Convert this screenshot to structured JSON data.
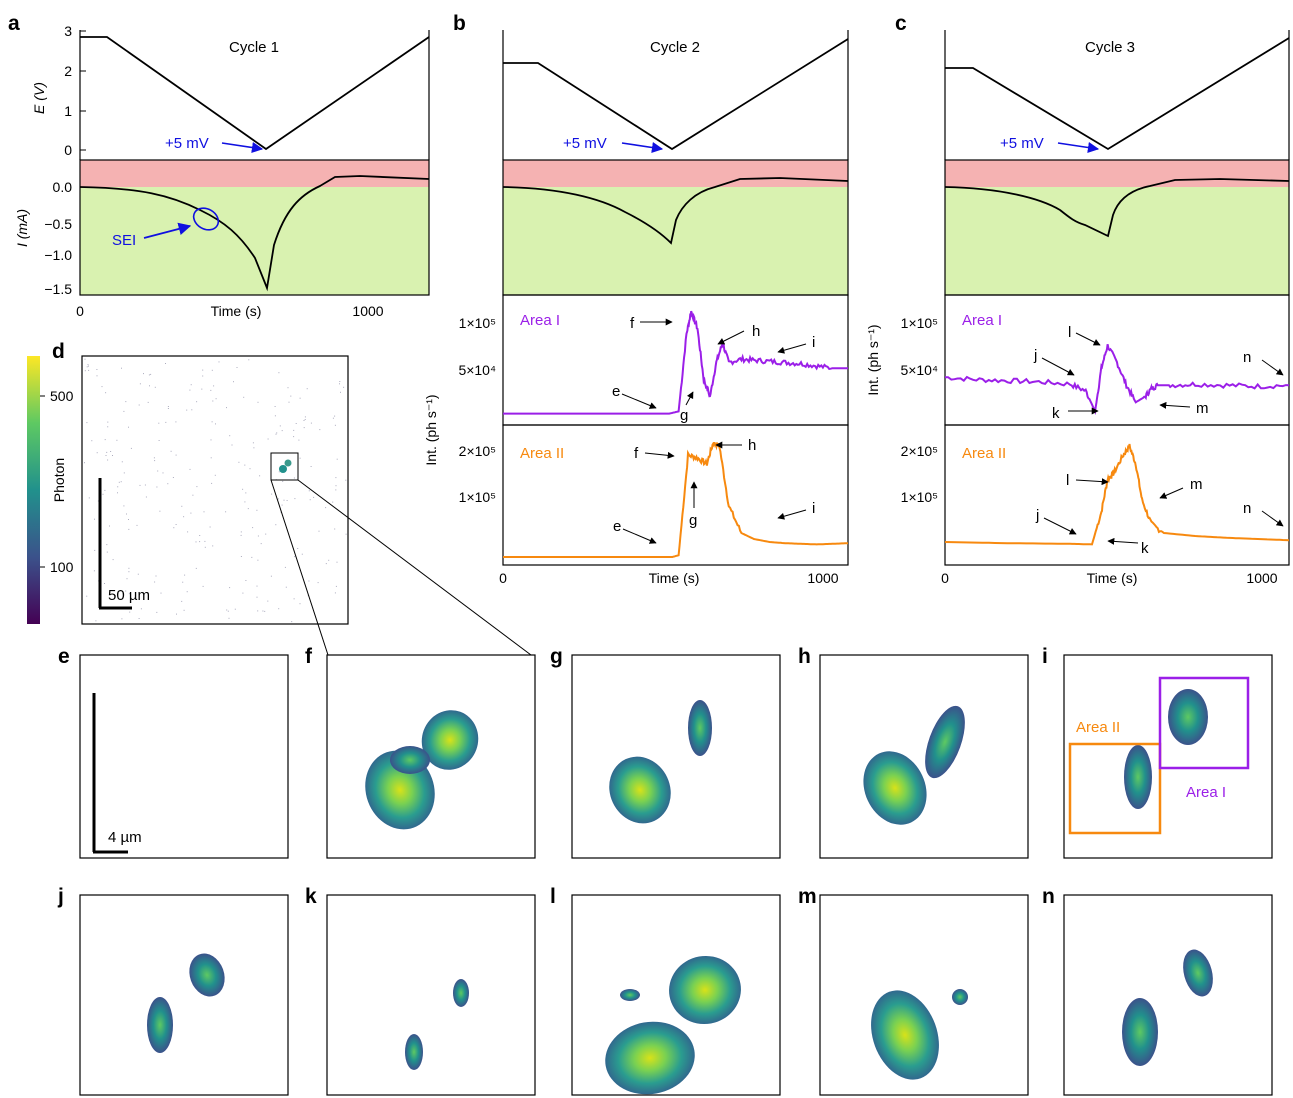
{
  "figure": {
    "panel_letters": [
      "a",
      "b",
      "c",
      "d",
      "e",
      "f",
      "g",
      "h",
      "i",
      "j",
      "k",
      "l",
      "m",
      "n"
    ]
  },
  "colors": {
    "charge_band": "#f5b2b2",
    "discharge_band": "#d9f2b0",
    "area1": "#9b1fe8",
    "area2": "#f7890f",
    "annotation_blue": "#1010e0",
    "trace": "#000000"
  },
  "cycles": [
    {
      "title": "Cycle 1",
      "annotation": "+5 mV"
    },
    {
      "title": "Cycle 2",
      "annotation": "+5 mV"
    },
    {
      "title": "Cycle 3",
      "annotation": "+5 mV"
    }
  ],
  "axes": {
    "E_label": "E (V)",
    "I_label": "I (mA)",
    "time_label": "Time (s)",
    "int_label": "Int. (ph s⁻¹)",
    "sei_label": "SEI",
    "E_ticks": [
      "0",
      "1",
      "2",
      "3"
    ],
    "I_ticks": [
      "0.0",
      "−0.5",
      "−1.0",
      "−1.5"
    ],
    "time_ticks": [
      "0",
      "1000"
    ],
    "area1_ticks": [
      "1×10⁵",
      "5×10⁴"
    ],
    "area2_ticks": [
      "2×10⁵",
      "1×10⁵"
    ]
  },
  "area_labels": {
    "area1": "Area I",
    "area2": "Area II"
  },
  "colorbar": {
    "label": "Photon",
    "ticks": [
      "500",
      "100"
    ]
  },
  "scalebars": {
    "d": "50 µm",
    "e": "4 µm"
  },
  "chart_data": [
    {
      "type": "line",
      "panel": "a (top)",
      "title": "Cycle 1",
      "xlabel": "Time (s)",
      "ylabel": "E (V)",
      "xlim": [
        0,
        1400
      ],
      "ylim": [
        -0.1,
        3.0
      ],
      "series": [
        {
          "x": [
            0,
            200,
            1000,
            1400
          ],
          "y": [
            2.78,
            2.78,
            0.005,
            2.78
          ]
        }
      ],
      "x": [
        0,
        200,
        1000,
        1400
      ],
      "annotations": [
        "+5 mV"
      ]
    },
    {
      "type": "line",
      "panel": "a (bottom)",
      "xlabel": "Time (s)",
      "ylabel": "I (mA)",
      "xlim": [
        0,
        1400
      ],
      "ylim": [
        -1.6,
        0.4
      ],
      "x": [
        0,
        150,
        300,
        450,
        550,
        650,
        750,
        820,
        870,
        900,
        940,
        1000,
        1100,
        1200,
        1300,
        1400
      ],
      "series": [
        {
          "x": [
            0,
            150,
            300,
            450,
            550,
            650,
            750,
            820,
            870,
            900,
            940,
            1000,
            1100,
            1200,
            1300,
            1400
          ],
          "y": [
            0.0,
            -0.01,
            -0.05,
            -0.15,
            -0.3,
            -0.5,
            -0.75,
            -1.05,
            -1.3,
            -1.48,
            -0.9,
            -0.3,
            0.1,
            0.17,
            0.17,
            0.15
          ]
        }
      ],
      "annotations": [
        "SEI"
      ]
    },
    {
      "type": "line",
      "panel": "b (Area I)",
      "title": "Cycle 2",
      "xlabel": "Time (s)",
      "ylabel": "Int. (ph s⁻¹)",
      "xlim": [
        0,
        1100
      ],
      "ylim": [
        0,
        110000
      ],
      "series": [
        {
          "name": "Area I",
          "x": [
            0,
            300,
            500,
            530,
            560,
            585,
            600,
            620,
            640,
            660,
            680,
            700,
            720,
            760,
            800,
            850,
            900,
            950,
            1000,
            1050,
            1100
          ],
          "y": [
            10000,
            10000,
            10000,
            10000,
            12000,
            80000,
            100000,
            85000,
            40000,
            25000,
            55000,
            72000,
            55000,
            58000,
            57000,
            56000,
            55000,
            54000,
            52000,
            50000,
            50000
          ]
        }
      ],
      "annotations": [
        "e",
        "f",
        "g",
        "h",
        "i"
      ]
    },
    {
      "type": "line",
      "panel": "b (Area II)",
      "xlabel": "Time (s)",
      "ylabel": "Int. (ph s⁻¹)",
      "xlim": [
        0,
        1100
      ],
      "ylim": [
        0,
        220000
      ],
      "series": [
        {
          "name": "Area II",
          "x": [
            0,
            300,
            500,
            540,
            560,
            590,
            620,
            650,
            670,
            690,
            720,
            760,
            800,
            850,
            900,
            950,
            1000,
            1050,
            1100
          ],
          "y": [
            5000,
            5000,
            5000,
            5000,
            8000,
            175000,
            170000,
            160000,
            195000,
            190000,
            90000,
            45000,
            35000,
            30000,
            28000,
            27000,
            26000,
            27000,
            28000
          ]
        }
      ],
      "annotations": [
        "e",
        "f",
        "g",
        "h",
        "i"
      ]
    },
    {
      "type": "line",
      "panel": "c (Area I)",
      "title": "Cycle 3",
      "xlabel": "Time (s)",
      "ylabel": "Int. (ph s⁻¹)",
      "xlim": [
        0,
        1100
      ],
      "ylim": [
        0,
        110000
      ],
      "series": [
        {
          "name": "Area I",
          "x": [
            0,
            100,
            200,
            300,
            400,
            450,
            480,
            500,
            520,
            550,
            580,
            610,
            640,
            660,
            680,
            720,
            800,
            900,
            1000,
            1100
          ],
          "y": [
            42000,
            40000,
            39000,
            38000,
            36000,
            30000,
            12000,
            50000,
            70000,
            55000,
            35000,
            20000,
            25000,
            32000,
            35000,
            35000,
            36000,
            35000,
            34000,
            35000
          ]
        }
      ],
      "annotations": [
        "j",
        "k",
        "l",
        "m",
        "n"
      ]
    },
    {
      "type": "line",
      "panel": "c (Area II)",
      "xlabel": "Time (s)",
      "ylabel": "Int. (ph s⁻¹)",
      "xlim": [
        0,
        1100
      ],
      "ylim": [
        0,
        220000
      ],
      "series": [
        {
          "name": "Area II",
          "x": [
            0,
            200,
            400,
            470,
            500,
            520,
            540,
            570,
            590,
            610,
            630,
            660,
            700,
            800,
            900,
            1000,
            1100
          ],
          "y": [
            30000,
            28000,
            27000,
            26000,
            80000,
            135000,
            145000,
            175000,
            190000,
            160000,
            100000,
            60000,
            45000,
            40000,
            37000,
            35000,
            33000
          ]
        }
      ],
      "annotations": [
        "j",
        "k",
        "l",
        "m",
        "n"
      ]
    }
  ],
  "images": [
    {
      "panel": "e"
    },
    {
      "panel": "f"
    },
    {
      "panel": "g"
    },
    {
      "panel": "h"
    },
    {
      "panel": "i"
    },
    {
      "panel": "j"
    },
    {
      "panel": "k"
    },
    {
      "panel": "l"
    },
    {
      "panel": "m"
    },
    {
      "panel": "n"
    }
  ]
}
